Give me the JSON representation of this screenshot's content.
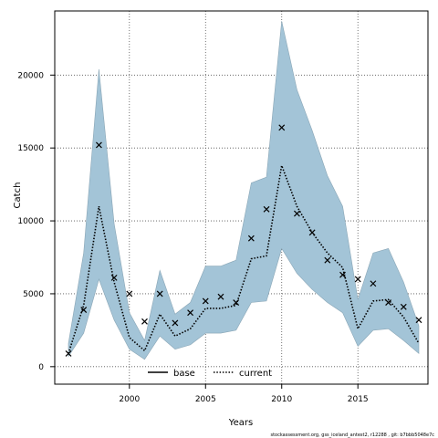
{
  "chart_data": {
    "type": "line",
    "xlabel": "Years",
    "ylabel": "Catch",
    "xlim": [
      1995.1,
      2019.6
    ],
    "ylim": [
      -1200,
      24400
    ],
    "xticks": [
      2000,
      2005,
      2010,
      2015
    ],
    "yticks": [
      0,
      5000,
      10000,
      15000,
      20000
    ],
    "grid": true,
    "legend": {
      "placement": "bottom-center",
      "entries": [
        "base",
        "current"
      ]
    },
    "colors": {
      "band": "#a3c4d7",
      "band_edge": "#8aa6b6",
      "line": "#000000",
      "grid": "#555555"
    },
    "x": [
      1996,
      1997,
      1998,
      1999,
      2000,
      2001,
      2002,
      2003,
      2004,
      2005,
      2006,
      2007,
      2008,
      2009,
      2010,
      2011,
      2012,
      2013,
      2014,
      2015,
      2016,
      2017,
      2018,
      2019
    ],
    "series": [
      {
        "name": "current",
        "style": "dotted",
        "values": [
          900,
          4200,
          11000,
          5800,
          2000,
          1100,
          3600,
          2100,
          2600,
          4000,
          4000,
          4200,
          7400,
          7600,
          13800,
          11000,
          9200,
          7800,
          6800,
          2600,
          4500,
          4600,
          3400,
          1600
        ],
        "lower": [
          700,
          2300,
          6000,
          3200,
          1200,
          500,
          2100,
          1200,
          1500,
          2300,
          2300,
          2500,
          4400,
          4500,
          8100,
          6400,
          5300,
          4400,
          3700,
          1400,
          2500,
          2600,
          1800,
          900
        ],
        "upper": [
          1600,
          7800,
          20400,
          9800,
          3700,
          1800,
          6600,
          3600,
          4400,
          6900,
          6900,
          7300,
          12600,
          13000,
          23700,
          19000,
          16200,
          13100,
          11000,
          4600,
          7800,
          8100,
          5800,
          2800
        ]
      }
    ],
    "observations": {
      "x": [
        1996,
        1997,
        1998,
        1999,
        2000,
        2001,
        2002,
        2003,
        2004,
        2005,
        2006,
        2007,
        2008,
        2009,
        2010,
        2011,
        2012,
        2013,
        2014,
        2015,
        2016,
        2017,
        2018,
        2019
      ],
      "values": [
        900,
        3900,
        15200,
        6100,
        5000,
        3100,
        5000,
        3000,
        3700,
        4500,
        4800,
        4400,
        8800,
        10800,
        16400,
        10500,
        9200,
        7300,
        6300,
        6000,
        5700,
        4400,
        4100,
        3200
      ]
    }
  },
  "footer": "stockassessment.org, gss_iceland_antest2, r12288 , git: b7bbb5048e7c"
}
